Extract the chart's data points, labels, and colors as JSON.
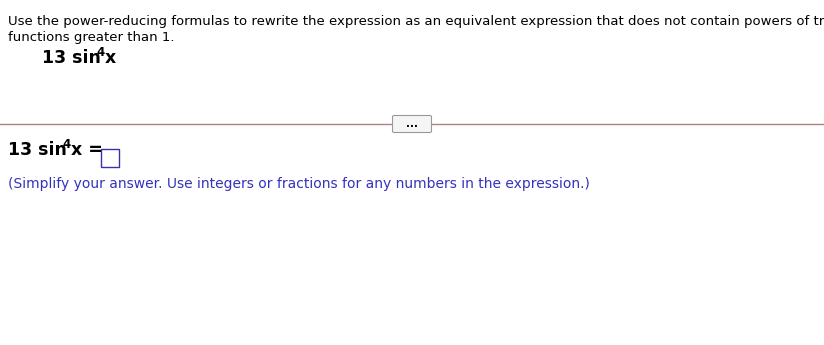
{
  "background_color": "#ffffff",
  "instruction_text_line1": "Use the power-reducing formulas to rewrite the expression as an equivalent expression that does not contain powers of trigonometric",
  "instruction_text_line2": "functions greater than 1.",
  "divider_color": "#b08080",
  "dots_text": "...",
  "text_color": "#000000",
  "simplify_color": "#3333bb",
  "simplify_text": "(Simplify your answer. Use integers or fractions for any numbers in the expression.)",
  "font_size_instruction": 9.5,
  "font_size_expression": 12.5,
  "font_size_answer": 12.5,
  "font_size_simplify": 10.0,
  "font_size_super": 8.5,
  "font_size_dots": 7.5
}
